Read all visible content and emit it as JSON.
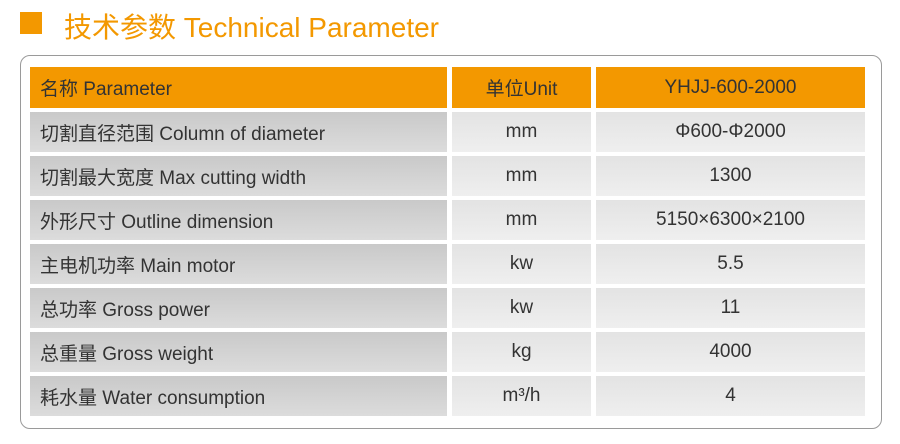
{
  "header": {
    "title": "技术参数 Technical Parameter"
  },
  "table": {
    "columns": [
      "名称 Parameter",
      "单位Unit",
      "YHJJ-600-2000"
    ],
    "rows": [
      [
        "切割直径范围 Column of diameter",
        "mm",
        "Φ600-Φ2000"
      ],
      [
        "切割最大宽度 Max cutting width",
        "mm",
        "1300"
      ],
      [
        "外形尺寸 Outline dimension",
        "mm",
        "5150×6300×2100"
      ],
      [
        "主电机功率 Main motor",
        "kw",
        "5.5"
      ],
      [
        "总功率 Gross power",
        "kw",
        "11"
      ],
      [
        "总重量 Gross weight",
        "kg",
        "4000"
      ],
      [
        "耗水量 Water consumption",
        "m³/h",
        "4"
      ]
    ]
  }
}
